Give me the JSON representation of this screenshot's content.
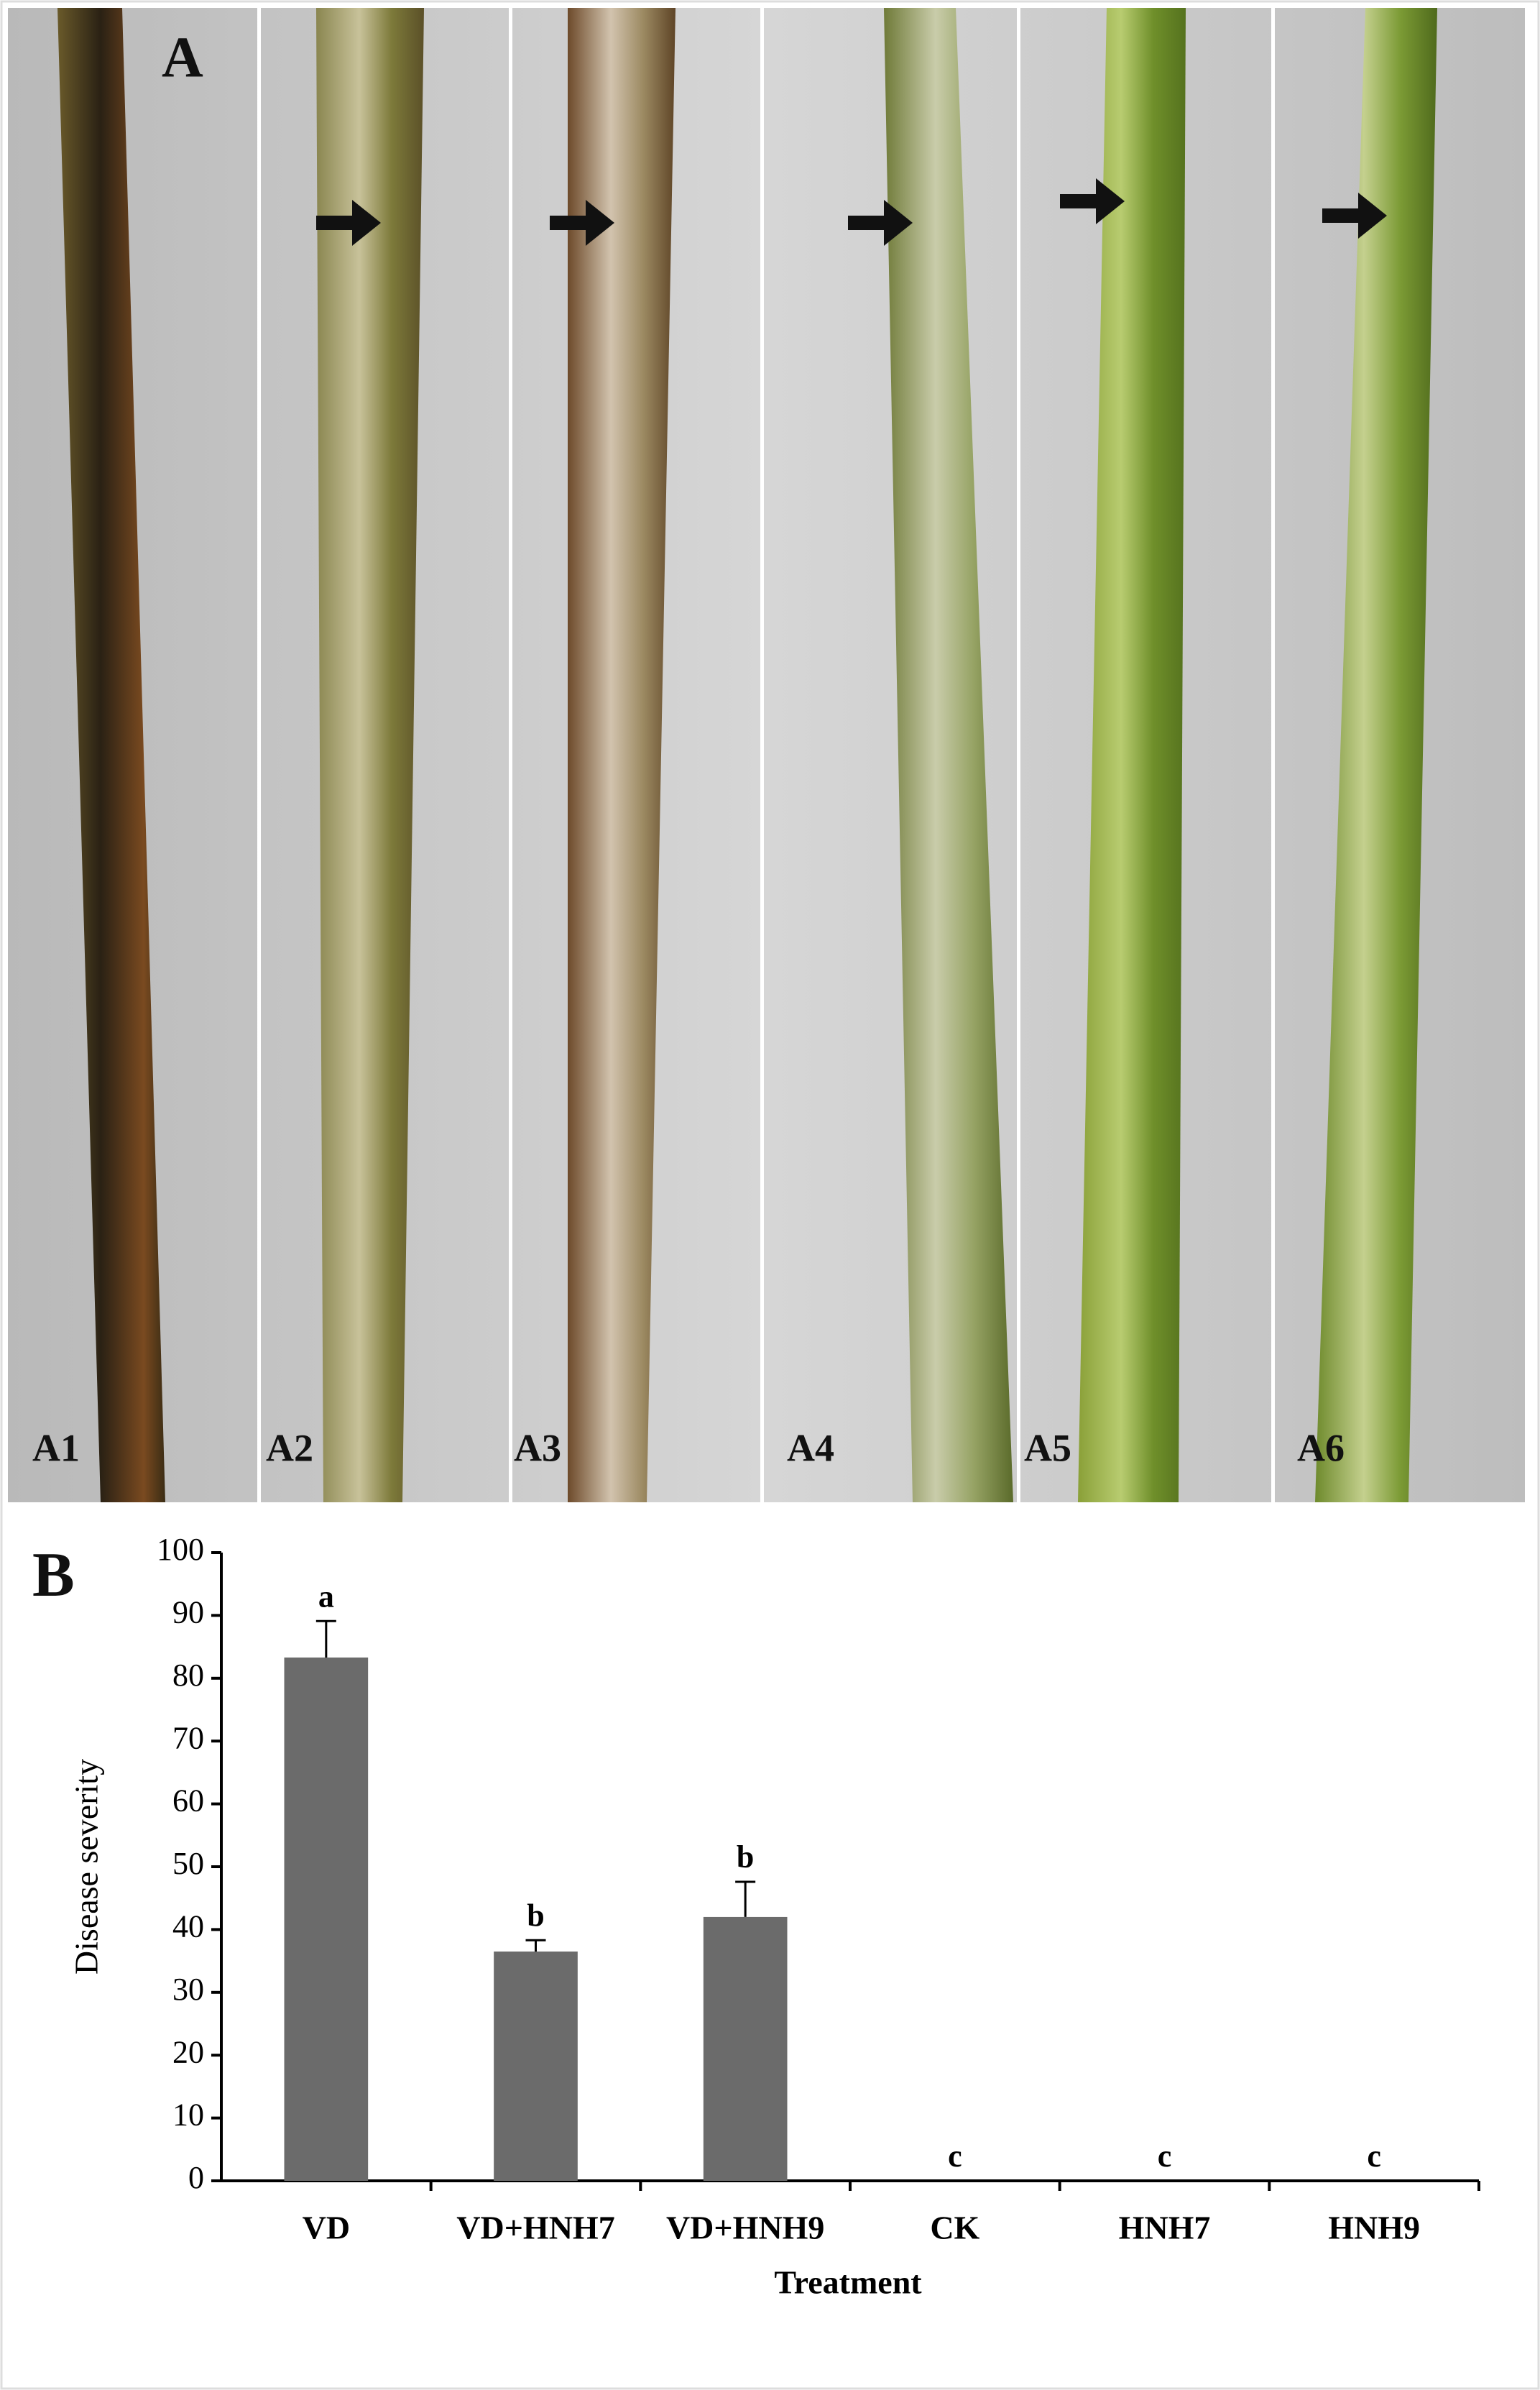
{
  "panel_a": {
    "label": "A",
    "subpanels": [
      "A1",
      "A2",
      "A3",
      "A4",
      "A5",
      "A6"
    ]
  },
  "chart_data": {
    "type": "bar",
    "panel_label": "B",
    "x_label": "Treatment",
    "y_label": "Disease severity",
    "categories": [
      "VD",
      "VD+HNH7",
      "VD+HNH9",
      "CK",
      "HNH7",
      "HNH9"
    ],
    "values": [
      83.3,
      36.5,
      42,
      0,
      0,
      0
    ],
    "errors": [
      5.8,
      1.8,
      5.6,
      0,
      0,
      0
    ],
    "significance": [
      "a",
      "b",
      "b",
      "c",
      "c",
      "c"
    ],
    "color": "#6b6b6b",
    "ylim": [
      0,
      100
    ],
    "yticks": [
      0,
      10,
      20,
      30,
      40,
      50,
      60,
      70,
      80,
      90,
      100
    ]
  }
}
